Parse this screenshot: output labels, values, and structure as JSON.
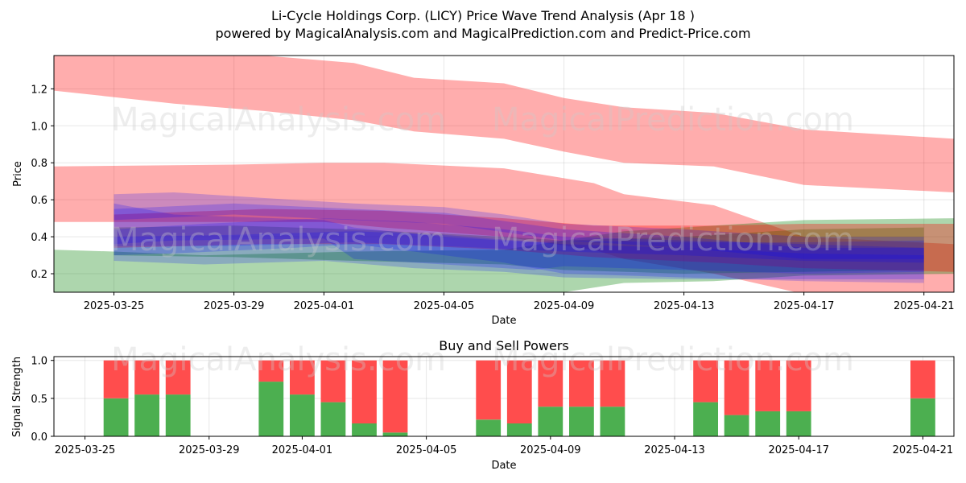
{
  "title": "Li-Cycle Holdings Corp. (LICY) Price Wave Trend Analysis (Apr 18 )",
  "subtitle": "powered by MagicalAnalysis.com and MagicalPrediction.com and Predict-Price.com",
  "watermarks": [
    "MagicalAnalysis.com",
    "MagicalPrediction.com"
  ],
  "colors": {
    "red": "#ff0000",
    "green": "#008000",
    "blue": "#0000ff",
    "buy": "#4caf50",
    "sell": "#ff4d4d"
  },
  "chart_data": [
    {
      "type": "area",
      "xlabel": "Date",
      "ylabel": "Price",
      "xlim": [
        "2025-03-23",
        "2025-04-22"
      ],
      "ylim": [
        0.1,
        1.38
      ],
      "x_ticks": [
        "2025-03-25",
        "2025-03-29",
        "2025-04-01",
        "2025-04-05",
        "2025-04-09",
        "2025-04-13",
        "2025-04-17",
        "2025-04-21"
      ],
      "y_ticks": [
        "0.2",
        "0.4",
        "0.6",
        "0.8",
        "1.0",
        "1.2"
      ],
      "y_tick_values": [
        0.2,
        0.4,
        0.6,
        0.8,
        1.0,
        1.2
      ],
      "grid": true,
      "bands": [
        {
          "color": "red",
          "x": [
            "2025-03-23",
            "2025-03-27",
            "2025-03-30",
            "2025-04-02",
            "2025-04-04",
            "2025-04-07",
            "2025-04-09",
            "2025-04-11",
            "2025-04-14",
            "2025-04-17",
            "2025-04-22"
          ],
          "upper": [
            1.42,
            1.4,
            1.38,
            1.34,
            1.26,
            1.23,
            1.15,
            1.1,
            1.07,
            0.98,
            0.93
          ],
          "lower": [
            1.19,
            1.12,
            1.08,
            1.03,
            0.97,
            0.93,
            0.86,
            0.8,
            0.78,
            0.68,
            0.64
          ]
        },
        {
          "color": "red",
          "x": [
            "2025-03-23",
            "2025-03-29",
            "2025-04-01",
            "2025-04-03",
            "2025-04-07",
            "2025-04-10",
            "2025-04-11",
            "2025-04-14",
            "2025-04-17",
            "2025-04-22"
          ],
          "upper": [
            0.78,
            0.79,
            0.8,
            0.8,
            0.77,
            0.69,
            0.63,
            0.57,
            0.4,
            0.36
          ],
          "lower": [
            0.48,
            0.48,
            0.48,
            0.45,
            0.4,
            0.33,
            0.28,
            0.2,
            0.09,
            0.07
          ]
        },
        {
          "color": "green",
          "x": [
            "2025-03-23",
            "2025-03-25",
            "2025-03-28",
            "2025-04-02",
            "2025-04-07",
            "2025-04-09",
            "2025-04-11",
            "2025-04-14",
            "2025-04-17",
            "2025-04-22"
          ],
          "upper": [
            0.33,
            0.32,
            0.3,
            0.32,
            0.33,
            0.38,
            0.43,
            0.46,
            0.49,
            0.5
          ],
          "lower": [
            0.06,
            0.05,
            0.06,
            0.08,
            0.09,
            0.1,
            0.15,
            0.16,
            0.19,
            0.2
          ]
        },
        {
          "color": "green",
          "x": [
            "2025-03-25",
            "2025-03-29",
            "2025-04-02",
            "2025-04-07",
            "2025-04-09",
            "2025-04-13",
            "2025-04-17",
            "2025-04-21"
          ],
          "upper": [
            0.45,
            0.46,
            0.44,
            0.4,
            0.38,
            0.4,
            0.44,
            0.45
          ],
          "lower": [
            0.3,
            0.29,
            0.27,
            0.25,
            0.22,
            0.2,
            0.21,
            0.22
          ]
        },
        {
          "color": "red",
          "x": [
            "2025-03-25",
            "2025-03-30",
            "2025-04-03",
            "2025-04-07",
            "2025-04-10",
            "2025-04-14",
            "2025-04-17",
            "2025-04-22"
          ],
          "upper": [
            0.52,
            0.55,
            0.54,
            0.5,
            0.46,
            0.46,
            0.47,
            0.47
          ],
          "lower": [
            0.34,
            0.36,
            0.36,
            0.33,
            0.29,
            0.26,
            0.23,
            0.21
          ]
        },
        {
          "color": "blue",
          "x": [
            "2025-03-25",
            "2025-03-27",
            "2025-03-31",
            "2025-04-02",
            "2025-04-05",
            "2025-04-07",
            "2025-04-09",
            "2025-04-13",
            "2025-04-17",
            "2025-04-21"
          ],
          "upper": [
            0.63,
            0.64,
            0.6,
            0.58,
            0.56,
            0.52,
            0.47,
            0.44,
            0.4,
            0.4
          ],
          "lower": [
            0.3,
            0.31,
            0.34,
            0.36,
            0.3,
            0.26,
            0.2,
            0.18,
            0.16,
            0.15
          ]
        },
        {
          "color": "blue",
          "x": [
            "2025-03-25",
            "2025-03-28",
            "2025-04-01",
            "2025-04-04",
            "2025-04-07",
            "2025-04-09",
            "2025-04-13",
            "2025-04-17",
            "2025-04-21"
          ],
          "upper": [
            0.44,
            0.47,
            0.5,
            0.48,
            0.44,
            0.4,
            0.38,
            0.36,
            0.34
          ],
          "lower": [
            0.27,
            0.25,
            0.27,
            0.23,
            0.21,
            0.18,
            0.17,
            0.17,
            0.17
          ]
        },
        {
          "color": "blue",
          "x": [
            "2025-03-25",
            "2025-03-27",
            "2025-04-01",
            "2025-04-02",
            "2025-04-05",
            "2025-04-08",
            "2025-04-09",
            "2025-04-13",
            "2025-04-17",
            "2025-04-21"
          ],
          "upper": [
            0.58,
            0.52,
            0.49,
            0.45,
            0.4,
            0.37,
            0.38,
            0.37,
            0.37,
            0.38
          ],
          "lower": [
            0.36,
            0.38,
            0.39,
            0.28,
            0.25,
            0.22,
            0.24,
            0.22,
            0.2,
            0.21
          ]
        },
        {
          "color": "blue",
          "x": [
            "2025-03-25",
            "2025-03-29",
            "2025-04-02",
            "2025-04-05",
            "2025-04-09",
            "2025-04-13",
            "2025-04-17",
            "2025-04-21"
          ],
          "upper": [
            0.4,
            0.41,
            0.43,
            0.41,
            0.36,
            0.34,
            0.31,
            0.3
          ],
          "lower": [
            0.35,
            0.35,
            0.37,
            0.35,
            0.32,
            0.3,
            0.27,
            0.26
          ]
        },
        {
          "color": "blue",
          "x": [
            "2025-03-25",
            "2025-03-29",
            "2025-04-02",
            "2025-04-05",
            "2025-04-09",
            "2025-04-13",
            "2025-04-17",
            "2025-04-21"
          ],
          "upper": [
            0.55,
            0.58,
            0.55,
            0.53,
            0.44,
            0.4,
            0.34,
            0.34
          ],
          "lower": [
            0.49,
            0.52,
            0.49,
            0.47,
            0.38,
            0.34,
            0.28,
            0.28
          ]
        }
      ]
    },
    {
      "type": "bar",
      "title": "Buy and Sell Powers",
      "xlabel": "Date",
      "ylabel": "Signal Strength",
      "xlim": [
        "2025-03-24",
        "2025-04-22"
      ],
      "ylim": [
        0,
        1.05
      ],
      "x_ticks": [
        "2025-03-25",
        "2025-03-29",
        "2025-04-01",
        "2025-04-05",
        "2025-04-09",
        "2025-04-13",
        "2025-04-17",
        "2025-04-21"
      ],
      "y_ticks": [
        "0.0",
        "0.5",
        "1.0"
      ],
      "y_tick_values": [
        0.0,
        0.5,
        1.0
      ],
      "grid": true,
      "stacked": true,
      "dates": [
        "2025-03-26",
        "2025-03-27",
        "2025-03-28",
        "2025-03-31",
        "2025-04-01",
        "2025-04-02",
        "2025-04-03",
        "2025-04-04",
        "2025-04-07",
        "2025-04-08",
        "2025-04-09",
        "2025-04-10",
        "2025-04-11",
        "2025-04-14",
        "2025-04-15",
        "2025-04-16",
        "2025-04-17",
        "2025-04-21"
      ],
      "series": [
        {
          "color": "buy",
          "values": [
            0.5,
            0.55,
            0.55,
            0.72,
            0.55,
            0.45,
            0.17,
            0.05,
            0.22,
            0.17,
            0.39,
            0.39,
            0.39,
            0.45,
            0.28,
            0.33,
            0.33,
            0.5
          ]
        },
        {
          "color": "sell",
          "values": [
            0.5,
            0.45,
            0.45,
            0.28,
            0.45,
            0.55,
            0.83,
            0.95,
            0.78,
            0.83,
            0.61,
            0.61,
            0.61,
            0.55,
            0.72,
            0.67,
            0.67,
            0.5
          ]
        }
      ]
    }
  ]
}
